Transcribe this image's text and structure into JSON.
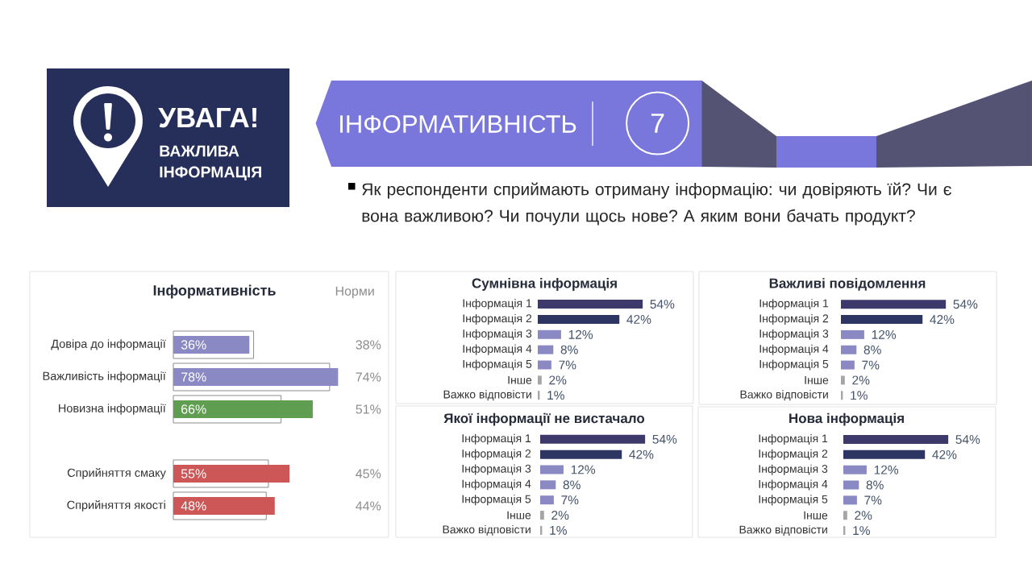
{
  "chart_data": [
    {
      "type": "other",
      "title": "ІНФОРМАТИВНІСТЬ",
      "annotations": [
        "7",
        "УВАГА!",
        "ВАЖЛИВА ІНФОРМАЦІЯ",
        "Як респонденти сприймають отриману інформацію: чи довіряють їй? Чи є вона важливою? Чи почули щось нове? А яким вони бачать продукт?"
      ]
    },
    {
      "type": "bar",
      "orientation": "horizontal",
      "title": "Інформативність",
      "categories": [
        "Довіра до інформації",
        "Важливість інформації",
        "Новизна інформації",
        null,
        "Сприйняття смаку",
        "Сприйняття якості"
      ],
      "series": [
        {
          "name": "Норми",
          "color": "#8c8c8c",
          "values": [
            38,
            74,
            51,
            null,
            45,
            44
          ],
          "value_labels": [
            "38%",
            "74%",
            "51%",
            null,
            "45%",
            "44%"
          ]
        },
        {
          "colors": [
            "#8b89c4",
            "#8b89c4",
            "#5f9d50",
            null,
            "#cd5656",
            "#cd5656"
          ],
          "values": [
            36,
            78,
            66,
            null,
            55,
            48
          ],
          "value_labels": [
            "36%",
            "78%",
            "66%",
            null,
            "55%",
            "48%"
          ]
        }
      ],
      "tick_labels": "y"
    },
    {
      "type": "bar",
      "orientation": "horizontal",
      "title": "Сумнівна інформація",
      "categories": [
        "Інформація 1",
        "Інформація 2",
        "Інформація 3",
        "Інформація 4",
        "Інформація 5",
        "Інше",
        "Важко відповісти"
      ],
      "values": [
        54,
        42,
        12,
        8,
        7,
        2,
        1
      ],
      "colors": [
        "#3d396b",
        "#2d3663",
        "#8b89c4",
        "#8b89c4",
        "#8b89c4",
        "#a6a6a6",
        "#a6a6a6"
      ],
      "value_labels": [
        "54%",
        "42%",
        "12%",
        "8%",
        "7%",
        "2%",
        "1%"
      ],
      "tick_labels": "y"
    },
    {
      "type": "bar",
      "orientation": "horizontal",
      "title": "Важливі повідомлення",
      "categories": [
        "Інформація 1",
        "Інформація 2",
        "Інформація 3",
        "Інформація 4",
        "Інформація 5",
        "Інше",
        "Важко відповісти"
      ],
      "values": [
        54,
        42,
        12,
        8,
        7,
        2,
        1
      ],
      "colors": [
        "#3d396b",
        "#2d3663",
        "#8b89c4",
        "#8b89c4",
        "#8b89c4",
        "#a6a6a6",
        "#a6a6a6"
      ],
      "value_labels": [
        "54%",
        "42%",
        "12%",
        "8%",
        "7%",
        "2%",
        "1%"
      ],
      "tick_labels": "y"
    },
    {
      "type": "bar",
      "orientation": "horizontal",
      "title": "Якої інформації не вистачало",
      "categories": [
        "Інформація 1",
        "Інформація 2",
        "Інформація 3",
        "Інформація 4",
        "Інформація 5",
        "Інше",
        "Важко відповісти"
      ],
      "values": [
        54,
        42,
        12,
        8,
        7,
        2,
        1
      ],
      "colors": [
        "#3d396b",
        "#2d3663",
        "#8b89c4",
        "#8b89c4",
        "#8b89c4",
        "#a6a6a6",
        "#a6a6a6"
      ],
      "value_labels": [
        "54%",
        "42%",
        "12%",
        "8%",
        "7%",
        "2%",
        "1%"
      ],
      "tick_labels": "y"
    },
    {
      "type": "bar",
      "orientation": "horizontal",
      "title": "Нова інформація",
      "categories": [
        "Інформація 1",
        "Інформація 2",
        "Інформація 3",
        "Інформація 4",
        "Інформація 5",
        "Інше",
        "Важко відповісти"
      ],
      "values": [
        54,
        42,
        12,
        8,
        7,
        2,
        1
      ],
      "colors": [
        "#3d396b",
        "#2d3663",
        "#8b89c4",
        "#8b89c4",
        "#8b89c4",
        "#a6a6a6",
        "#a6a6a6"
      ],
      "value_labels": [
        "54%",
        "42%",
        "12%",
        "8%",
        "7%",
        "2%",
        "1%"
      ],
      "tick_labels": "y"
    }
  ]
}
